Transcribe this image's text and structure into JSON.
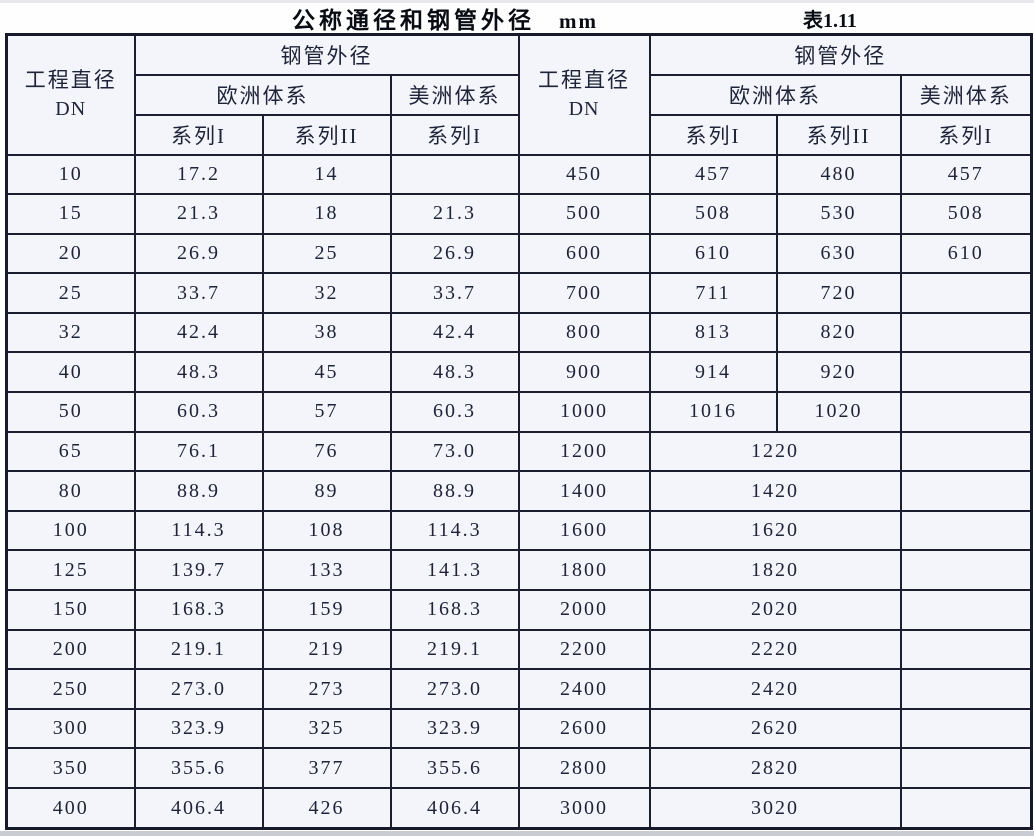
{
  "title": {
    "main": "公称通径和钢管外径",
    "unit": "mm",
    "table_no": "表1.11"
  },
  "colors": {
    "border": "#1a1e30",
    "cell_background": "#f3f5fa",
    "text": "#1f2338"
  },
  "table": {
    "header": {
      "dn_label": "工程直径",
      "dn_sub": "DN",
      "outer_diameter": "钢管外径",
      "europe_system": "欧洲体系",
      "america_system": "美洲体系",
      "series1": "系列I",
      "series2": "系列II"
    },
    "left_rows": [
      [
        "10",
        "17.2",
        "14",
        ""
      ],
      [
        "15",
        "21.3",
        "18",
        "21.3"
      ],
      [
        "20",
        "26.9",
        "25",
        "26.9"
      ],
      [
        "25",
        "33.7",
        "32",
        "33.7"
      ],
      [
        "32",
        "42.4",
        "38",
        "42.4"
      ],
      [
        "40",
        "48.3",
        "45",
        "48.3"
      ],
      [
        "50",
        "60.3",
        "57",
        "60.3"
      ],
      [
        "65",
        "76.1",
        "76",
        "73.0"
      ],
      [
        "80",
        "88.9",
        "89",
        "88.9"
      ],
      [
        "100",
        "114.3",
        "108",
        "114.3"
      ],
      [
        "125",
        "139.7",
        "133",
        "141.3"
      ],
      [
        "150",
        "168.3",
        "159",
        "168.3"
      ],
      [
        "200",
        "219.1",
        "219",
        "219.1"
      ],
      [
        "250",
        "273.0",
        "273",
        "273.0"
      ],
      [
        "300",
        "323.9",
        "325",
        "323.9"
      ],
      [
        "350",
        "355.6",
        "377",
        "355.6"
      ],
      [
        "400",
        "406.4",
        "426",
        "406.4"
      ]
    ],
    "right_rows": [
      {
        "dn": "450",
        "span": false,
        "cells": [
          "457",
          "480",
          "457"
        ]
      },
      {
        "dn": "500",
        "span": false,
        "cells": [
          "508",
          "530",
          "508"
        ]
      },
      {
        "dn": "600",
        "span": false,
        "cells": [
          "610",
          "630",
          "610"
        ]
      },
      {
        "dn": "700",
        "span": false,
        "cells": [
          "711",
          "720",
          ""
        ]
      },
      {
        "dn": "800",
        "span": false,
        "cells": [
          "813",
          "820",
          ""
        ]
      },
      {
        "dn": "900",
        "span": false,
        "cells": [
          "914",
          "920",
          ""
        ]
      },
      {
        "dn": "1000",
        "span": false,
        "cells": [
          "1016",
          "1020",
          ""
        ]
      },
      {
        "dn": "1200",
        "span": true,
        "cells": [
          "1220",
          ""
        ]
      },
      {
        "dn": "1400",
        "span": true,
        "cells": [
          "1420",
          ""
        ]
      },
      {
        "dn": "1600",
        "span": true,
        "cells": [
          "1620",
          ""
        ]
      },
      {
        "dn": "1800",
        "span": true,
        "cells": [
          "1820",
          ""
        ]
      },
      {
        "dn": "2000",
        "span": true,
        "cells": [
          "2020",
          ""
        ]
      },
      {
        "dn": "2200",
        "span": true,
        "cells": [
          "2220",
          ""
        ]
      },
      {
        "dn": "2400",
        "span": true,
        "cells": [
          "2420",
          ""
        ]
      },
      {
        "dn": "2600",
        "span": true,
        "cells": [
          "2620",
          ""
        ]
      },
      {
        "dn": "2800",
        "span": true,
        "cells": [
          "2820",
          ""
        ]
      },
      {
        "dn": "3000",
        "span": true,
        "cells": [
          "3020",
          ""
        ]
      }
    ]
  }
}
